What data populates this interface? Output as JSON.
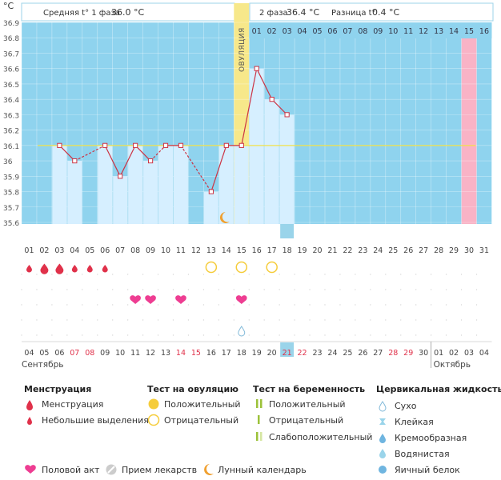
{
  "chart_data": {
    "type": "line",
    "unit_label": "°C",
    "y_ticks": [
      "36.9",
      "36.8",
      "36.7",
      "36.6",
      "36.5",
      "36.4",
      "36.3",
      "36.2",
      "36.1",
      "36",
      "35.9",
      "35.8",
      "35.7",
      "35.6"
    ],
    "ylim": [
      35.6,
      36.9
    ],
    "coverline": 36.1,
    "cycle_days": [
      "01",
      "02",
      "03",
      "04",
      "05",
      "06",
      "07",
      "08",
      "09",
      "10",
      "11",
      "12",
      "13",
      "14",
      "15",
      "16",
      "17",
      "18",
      "19",
      "20",
      "21",
      "22",
      "23",
      "24",
      "25",
      "26",
      "27",
      "28",
      "29",
      "30",
      "31"
    ],
    "phase2_days": [
      "01",
      "02",
      "03",
      "04",
      "05",
      "06",
      "07",
      "08",
      "09",
      "10",
      "11",
      "12",
      "13",
      "14",
      "15",
      "16"
    ],
    "ovulation_day_index": 15,
    "ovulation_label": "ОВУЛЯЦИЯ",
    "current_day_index": 18,
    "phase2_highlight_index": 15,
    "temperatures": [
      null,
      null,
      36.1,
      36.0,
      null,
      36.1,
      35.9,
      36.1,
      36.0,
      36.1,
      36.1,
      null,
      35.8,
      36.1,
      36.1,
      36.6,
      36.4,
      36.3,
      null,
      null,
      null,
      null,
      null,
      null,
      null,
      null,
      null,
      null,
      null,
      null,
      null
    ],
    "dashed_segments": [
      [
        4,
        6
      ],
      [
        9,
        10
      ],
      [
        11,
        13
      ]
    ],
    "calendar_dates": [
      "04",
      "05",
      "06",
      "07",
      "08",
      "09",
      "10",
      "11",
      "12",
      "13",
      "14",
      "15",
      "16",
      "17",
      "18",
      "19",
      "20",
      "21",
      "22",
      "23",
      "24",
      "25",
      "26",
      "27",
      "28",
      "29",
      "30",
      "01",
      "02",
      "03",
      "04"
    ],
    "weekend_indexes": [
      4,
      5,
      11,
      12,
      18,
      19,
      25,
      26
    ],
    "today_date_index": 18,
    "month_start": "Сентябрь",
    "month_next": "Октябрь",
    "month_next_index": 28,
    "menstruation": [
      {
        "day": 1,
        "size": "small"
      },
      {
        "day": 2,
        "size": "large"
      },
      {
        "day": 3,
        "size": "large"
      },
      {
        "day": 4,
        "size": "small"
      },
      {
        "day": 5,
        "size": "small"
      },
      {
        "day": 6,
        "size": "small"
      }
    ],
    "ovulation_tests": [
      {
        "day": 13,
        "result": "negative"
      },
      {
        "day": 15,
        "result": "negative"
      },
      {
        "day": 17,
        "result": "negative"
      }
    ],
    "intercourse_days": [
      8,
      9,
      11,
      15
    ],
    "moon_day": 14,
    "cervical_fluid": [
      {
        "day": 15,
        "type": "Сухо"
      }
    ]
  },
  "header": {
    "phase1_label": "Средняя t° 1 фаза",
    "phase1_value": "36.0 °C",
    "phase2_label": "2 фаза",
    "phase2_value": "36.4 °C",
    "diff_label": "Разница t°",
    "diff_value": "0.4 °C"
  },
  "legend": {
    "menstruation": {
      "title": "Менструация",
      "items": [
        "Менструация",
        "Небольшие выделения"
      ]
    },
    "ovulation_test": {
      "title": "Тест на овуляцию",
      "items": [
        "Положительный",
        "Отрицательный"
      ]
    },
    "pregnancy_test": {
      "title": "Тест на беременность",
      "items": [
        "Положительный",
        "Отрицательный",
        "Слабоположительный"
      ]
    },
    "cervical": {
      "title": "Цервикальная жидкость",
      "items": [
        "Сухо",
        "Клейкая",
        "Кремообразная",
        "Водянистая",
        "Яичный белок"
      ]
    },
    "bottom": [
      "Половой акт",
      "Прием лекарств",
      "Лунный календарь"
    ]
  },
  "colors": {
    "grid_bg": "#8fd3ee",
    "bar_fill": "#d6efff",
    "line": "#cc3344",
    "ovulation": "#f7e88a",
    "pink": "#f9b3c6",
    "accent_blue": "#9ad4ea"
  }
}
